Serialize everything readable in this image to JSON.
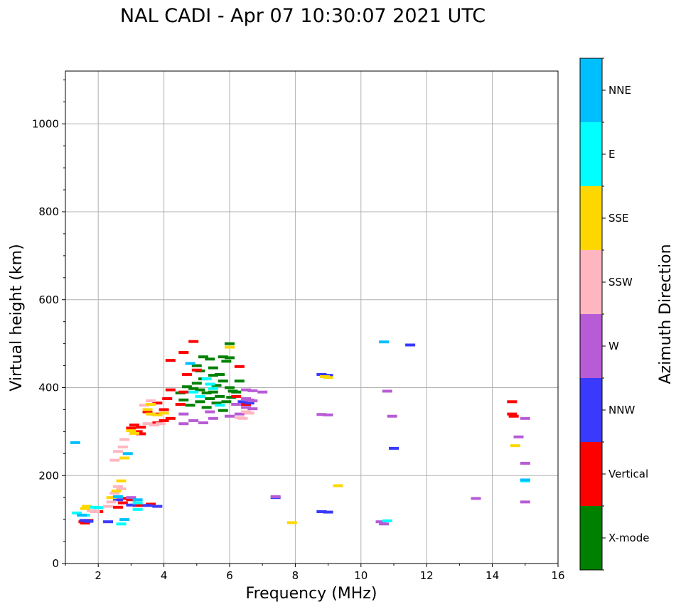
{
  "chart_data": {
    "type": "scatter",
    "title": "NAL CADI - Apr 07 10:30:07 2021 UTC",
    "xlabel": "Frequency (MHz)",
    "ylabel": "Virtual height (km)",
    "xlim": [
      1,
      16
    ],
    "ylim": [
      0,
      1120
    ],
    "xticks": [
      2,
      4,
      6,
      8,
      10,
      12,
      14,
      16
    ],
    "yticks": [
      0,
      200,
      400,
      600,
      800,
      1000
    ],
    "grid": true,
    "colorbar": {
      "label": "Azimuth Direction",
      "categories": [
        {
          "name": "X-mode",
          "color": "#008000"
        },
        {
          "name": "Vertical",
          "color": "#ff0000"
        },
        {
          "name": "NNW",
          "color": "#3a3aff"
        },
        {
          "name": "W",
          "color": "#b85bd6"
        },
        {
          "name": "SSW",
          "color": "#ffb6c1"
        },
        {
          "name": "SSE",
          "color": "#ffd700"
        },
        {
          "name": "E",
          "color": "#00ffff"
        },
        {
          "name": "NNE",
          "color": "#00bfff"
        }
      ]
    },
    "series": [
      {
        "name": "X-mode",
        "points": [
          [
            4.7,
            402
          ],
          [
            4.9,
            398
          ],
          [
            5.0,
            410
          ],
          [
            5.1,
            395
          ],
          [
            5.2,
            420
          ],
          [
            5.3,
            388
          ],
          [
            5.4,
            375
          ],
          [
            5.5,
            428
          ],
          [
            5.6,
            405
          ],
          [
            5.7,
            380
          ],
          [
            5.8,
            415
          ],
          [
            5.9,
            368
          ],
          [
            6.0,
            400
          ],
          [
            6.05,
            378
          ],
          [
            6.1,
            392
          ],
          [
            5.0,
            450
          ],
          [
            5.2,
            470
          ],
          [
            5.5,
            445
          ],
          [
            5.8,
            470
          ],
          [
            6.0,
            500
          ],
          [
            5.6,
            365
          ],
          [
            5.3,
            355
          ],
          [
            5.8,
            348
          ],
          [
            6.3,
            415
          ],
          [
            5.9,
            460
          ],
          [
            5.1,
            438
          ],
          [
            5.4,
            465
          ],
          [
            4.8,
            360
          ],
          [
            4.6,
            372
          ],
          [
            5.7,
            430
          ],
          [
            6.2,
            390
          ],
          [
            5.5,
            390
          ],
          [
            4.5,
            388
          ],
          [
            5.1,
            368
          ],
          [
            6.0,
            468
          ]
        ]
      },
      {
        "name": "Vertical",
        "points": [
          [
            1.55,
            95
          ],
          [
            1.6,
            92
          ],
          [
            1.7,
            98
          ],
          [
            2.0,
            118
          ],
          [
            2.6,
            128
          ],
          [
            2.75,
            138
          ],
          [
            2.9,
            148
          ],
          [
            3.0,
            145
          ],
          [
            3.2,
            132
          ],
          [
            3.6,
            135
          ],
          [
            3.1,
            315
          ],
          [
            3.0,
            308
          ],
          [
            3.2,
            300
          ],
          [
            3.3,
            295
          ],
          [
            3.5,
            345
          ],
          [
            3.7,
            340
          ],
          [
            4.0,
            350
          ],
          [
            4.2,
            330
          ],
          [
            4.0,
            325
          ],
          [
            3.8,
            365
          ],
          [
            4.1,
            375
          ],
          [
            4.2,
            395
          ],
          [
            4.6,
            390
          ],
          [
            4.7,
            430
          ],
          [
            5.0,
            440
          ],
          [
            4.2,
            462
          ],
          [
            4.9,
            505
          ],
          [
            4.6,
            480
          ],
          [
            6.3,
            448
          ],
          [
            6.2,
            380
          ],
          [
            6.5,
            362
          ],
          [
            14.6,
            368
          ],
          [
            14.6,
            340
          ],
          [
            14.65,
            335
          ],
          [
            3.3,
            310
          ],
          [
            3.8,
            320
          ],
          [
            4.5,
            362
          ]
        ]
      },
      {
        "name": "NNW",
        "points": [
          [
            1.58,
            98
          ],
          [
            1.7,
            96
          ],
          [
            2.3,
            95
          ],
          [
            3.0,
            133
          ],
          [
            3.5,
            132
          ],
          [
            3.8,
            130
          ],
          [
            8.8,
            430
          ],
          [
            9.0,
            428
          ],
          [
            8.8,
            118
          ],
          [
            9.0,
            117
          ],
          [
            11.5,
            497
          ],
          [
            11.0,
            262
          ],
          [
            6.4,
            368
          ],
          [
            6.6,
            365
          ],
          [
            7.4,
            150
          ],
          [
            2.6,
            145
          ]
        ]
      },
      {
        "name": "W",
        "points": [
          [
            6.5,
            395
          ],
          [
            6.7,
            393
          ],
          [
            7.0,
            390
          ],
          [
            6.5,
            375
          ],
          [
            6.6,
            372
          ],
          [
            6.7,
            370
          ],
          [
            6.5,
            355
          ],
          [
            6.7,
            352
          ],
          [
            6.2,
            362
          ],
          [
            6.3,
            340
          ],
          [
            6.0,
            335
          ],
          [
            4.6,
            318
          ],
          [
            4.9,
            325
          ],
          [
            5.2,
            320
          ],
          [
            5.5,
            330
          ],
          [
            8.8,
            339
          ],
          [
            9.0,
            338
          ],
          [
            10.8,
            392
          ],
          [
            10.95,
            335
          ],
          [
            10.6,
            95
          ],
          [
            10.7,
            90
          ],
          [
            14.8,
            288
          ],
          [
            15.0,
            330
          ],
          [
            15.0,
            228
          ],
          [
            15.0,
            140
          ],
          [
            13.5,
            148
          ],
          [
            7.4,
            152
          ],
          [
            3.0,
            150
          ],
          [
            4.6,
            340
          ],
          [
            5.4,
            345
          ]
        ]
      },
      {
        "name": "SSW",
        "points": [
          [
            1.8,
            120
          ],
          [
            1.9,
            118
          ],
          [
            2.5,
            160
          ],
          [
            2.6,
            175
          ],
          [
            2.7,
            170
          ],
          [
            2.5,
            235
          ],
          [
            2.6,
            255
          ],
          [
            2.75,
            265
          ],
          [
            2.8,
            282
          ],
          [
            3.5,
            318
          ],
          [
            3.7,
            315
          ],
          [
            3.9,
            318
          ],
          [
            6.3,
            332
          ],
          [
            6.4,
            330
          ],
          [
            6.5,
            345
          ],
          [
            6.6,
            342
          ],
          [
            2.3,
            130
          ],
          [
            2.4,
            140
          ],
          [
            3.4,
            360
          ],
          [
            3.6,
            370
          ]
        ]
      },
      {
        "name": "SSE",
        "points": [
          [
            1.65,
            130
          ],
          [
            1.6,
            125
          ],
          [
            2.4,
            150
          ],
          [
            2.55,
            165
          ],
          [
            2.7,
            188
          ],
          [
            3.0,
            302
          ],
          [
            3.1,
            296
          ],
          [
            3.5,
            350
          ],
          [
            3.6,
            340
          ],
          [
            3.8,
            338
          ],
          [
            4.0,
            342
          ],
          [
            6.0,
            492
          ],
          [
            8.9,
            425
          ],
          [
            9.0,
            423
          ],
          [
            9.3,
            177
          ],
          [
            14.7,
            268
          ],
          [
            7.9,
            93
          ],
          [
            2.8,
            240
          ],
          [
            3.6,
            362
          ]
        ]
      },
      {
        "name": "E",
        "points": [
          [
            1.35,
            115
          ],
          [
            1.6,
            110
          ],
          [
            1.9,
            128
          ],
          [
            2.0,
            127
          ],
          [
            2.7,
            90
          ],
          [
            5.3,
            420
          ],
          [
            5.4,
            408
          ],
          [
            5.1,
            380
          ],
          [
            5.5,
            398
          ],
          [
            4.9,
            390
          ],
          [
            5.7,
            360
          ],
          [
            10.8,
            97
          ],
          [
            15.0,
            188
          ],
          [
            3.2,
            138
          ],
          [
            3.2,
            123
          ]
        ]
      },
      {
        "name": "NNE",
        "points": [
          [
            1.3,
            275
          ],
          [
            1.5,
            110
          ],
          [
            2.6,
            152
          ],
          [
            2.9,
            250
          ],
          [
            3.2,
            145
          ],
          [
            10.7,
            504
          ],
          [
            15.0,
            190
          ],
          [
            4.8,
            455
          ],
          [
            2.8,
            100
          ]
        ]
      }
    ]
  }
}
